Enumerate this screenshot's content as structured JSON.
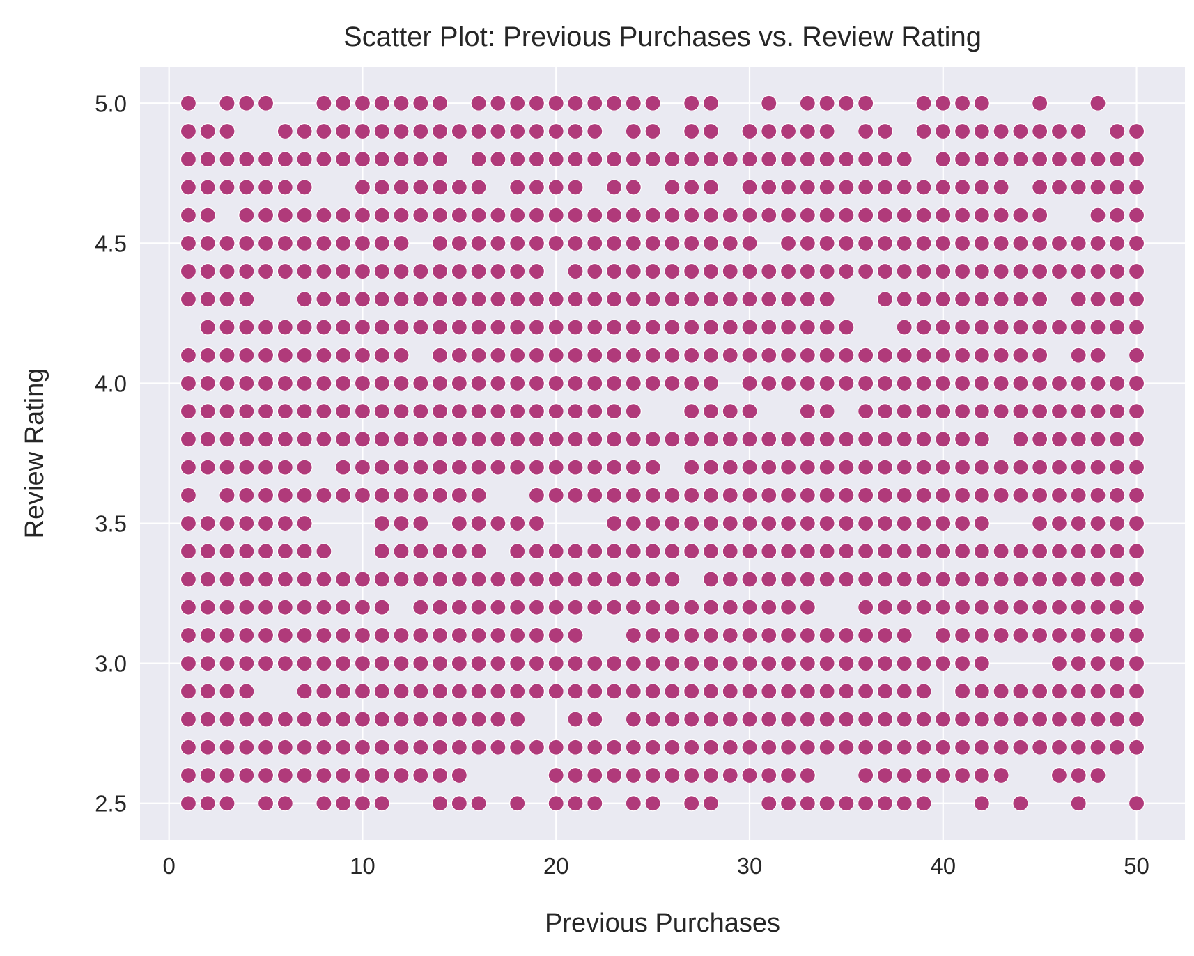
{
  "chart_data": {
    "type": "scatter",
    "title": "Scatter Plot: Previous Purchases vs. Review Rating",
    "xlabel": "Previous Purchases",
    "ylabel": "Review Rating",
    "xlim": [
      -1.5,
      52.5
    ],
    "ylim": [
      2.37,
      5.13
    ],
    "xticks": [
      0,
      10,
      20,
      30,
      40,
      50
    ],
    "xtick_labels": [
      "0",
      "10",
      "20",
      "30",
      "40",
      "50"
    ],
    "yticks": [
      2.5,
      3.0,
      3.5,
      4.0,
      4.5,
      5.0
    ],
    "ytick_labels": [
      "2.5",
      "3.0",
      "3.5",
      "4.0",
      "4.5",
      "5.0"
    ],
    "grid": true,
    "background": "#eaeaf2",
    "marker_color": "#b03a7a",
    "x_range": [
      1,
      50
    ],
    "y_levels": [
      5.0,
      4.9,
      4.8,
      4.7,
      4.6,
      4.5,
      4.4,
      4.3,
      4.2,
      4.1,
      4.0,
      3.9,
      3.8,
      3.7,
      3.6,
      3.5,
      3.4,
      3.3,
      3.2,
      3.1,
      3.0,
      2.9,
      2.8,
      2.7,
      2.6,
      2.5
    ],
    "absent_x": {
      "5.0": [
        2,
        6,
        7,
        15,
        26,
        29,
        30,
        32,
        37,
        38,
        43,
        44,
        46,
        47,
        49,
        50
      ],
      "4.9": [
        4,
        5,
        23,
        26,
        29,
        35,
        38,
        48
      ],
      "4.8": [
        15,
        39
      ],
      "4.7": [
        8,
        9,
        17,
        22,
        25,
        29,
        44
      ],
      "4.6": [
        3,
        46,
        47
      ],
      "4.5": [
        13,
        31
      ],
      "4.4": [
        20
      ],
      "4.3": [
        5,
        6,
        35,
        36,
        46
      ],
      "4.2": [
        1,
        36,
        37
      ],
      "4.1": [
        13,
        46,
        49
      ],
      "4.0": [
        29
      ],
      "3.9": [
        25,
        26,
        31,
        32,
        35
      ],
      "3.8": [
        43
      ],
      "3.7": [
        8,
        26
      ],
      "3.6": [
        2,
        17,
        18
      ],
      "3.5": [
        8,
        9,
        10,
        14,
        20,
        21,
        22,
        43,
        44
      ],
      "3.4": [
        9,
        10,
        17
      ],
      "3.3": [
        27
      ],
      "3.2": [
        12,
        34,
        35
      ],
      "3.1": [
        22,
        23,
        39
      ],
      "3.0": [
        43,
        44,
        45
      ],
      "2.9": [
        5,
        6,
        40
      ],
      "2.8": [
        19,
        20,
        23
      ],
      "2.7": [],
      "2.6": [
        16,
        17,
        18,
        19,
        34,
        35,
        44,
        45,
        49,
        50
      ],
      "2.5": [
        4,
        7,
        12,
        13,
        17,
        19,
        23,
        26,
        29,
        30,
        40,
        41,
        43,
        45,
        46,
        48,
        49
      ]
    }
  }
}
